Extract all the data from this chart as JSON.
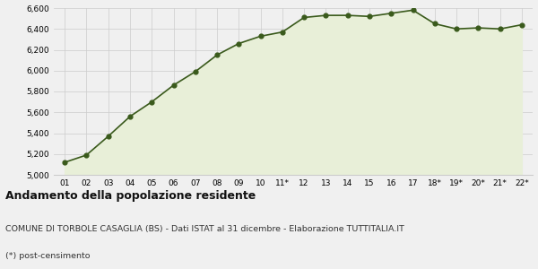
{
  "x_labels": [
    "01",
    "02",
    "03",
    "04",
    "05",
    "06",
    "07",
    "08",
    "09",
    "10",
    "11*",
    "12",
    "13",
    "14",
    "15",
    "16",
    "17",
    "18*",
    "19*",
    "20*",
    "21*",
    "22*"
  ],
  "y_values": [
    5120,
    5190,
    5370,
    5560,
    5700,
    5860,
    5990,
    6150,
    6260,
    6330,
    6370,
    6510,
    6530,
    6530,
    6520,
    6550,
    6580,
    6450,
    6400,
    6410,
    6400,
    6440
  ],
  "line_color": "#3a5a1c",
  "fill_color": "#e8efd8",
  "marker_color": "#3a5a1c",
  "bg_color": "#f0f0f0",
  "plot_bg_color": "#f0f0f0",
  "grid_color": "#cccccc",
  "ylim": [
    5000,
    6600
  ],
  "yticks": [
    5000,
    5200,
    5400,
    5600,
    5800,
    6000,
    6200,
    6400,
    6600
  ],
  "title": "Andamento della popolazione residente",
  "subtitle": "COMUNE DI TORBOLE CASAGLIA (BS) - Dati ISTAT al 31 dicembre - Elaborazione TUTTITALIA.IT",
  "footnote": "(*) post-censimento",
  "title_fontsize": 9,
  "subtitle_fontsize": 6.8,
  "footnote_fontsize": 6.8,
  "tick_fontsize": 6.5
}
